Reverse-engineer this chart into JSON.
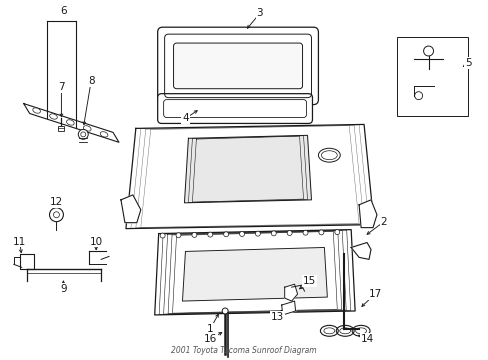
{
  "title": "2001 Toyota Tacoma Sunroof Diagram",
  "bg_color": "#ffffff",
  "line_color": "#1a1a1a",
  "fig_width": 4.89,
  "fig_height": 3.6,
  "dpi": 100
}
